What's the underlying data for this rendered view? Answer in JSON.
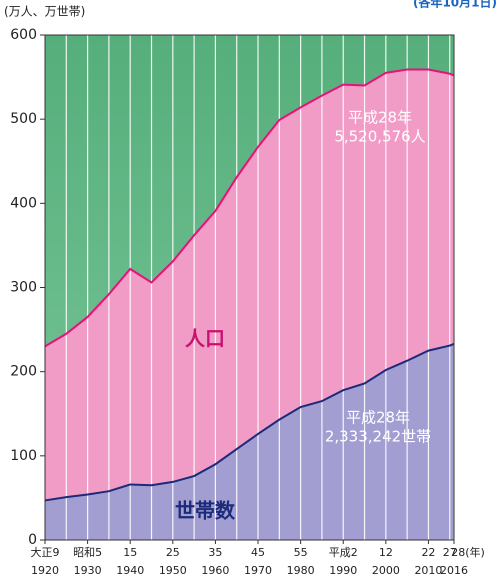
{
  "chart_data": {
    "type": "area",
    "y_axis_label": "(万人、万世帯)",
    "note": "(各年10月1日)",
    "x": [
      1920,
      1925,
      1930,
      1935,
      1940,
      1945,
      1950,
      1955,
      1960,
      1965,
      1970,
      1975,
      1980,
      1985,
      1990,
      1995,
      2000,
      2005,
      2010,
      2015,
      2016
    ],
    "series": [
      {
        "name": "人口",
        "color": "#f19cc6",
        "line_color": "#e4137c",
        "values": [
          230,
          245,
          265,
          292,
          322,
          306,
          331,
          362,
          391,
          431,
          467,
          499,
          514,
          528,
          541,
          540,
          555,
          559,
          559,
          554,
          552
        ]
      },
      {
        "name": "世帯数",
        "color": "#a29ed1",
        "line_color": "#1c2a7a",
        "values": [
          47,
          51,
          54,
          58,
          66,
          65,
          69,
          76,
          90,
          108,
          126,
          143,
          158,
          165,
          178,
          186,
          202,
          213,
          225,
          231,
          233
        ]
      }
    ],
    "background_color": "#5fb585",
    "xlim": [
      1920,
      2016
    ],
    "ylim": [
      0,
      600
    ],
    "yticks": [
      0,
      100,
      200,
      300,
      400,
      500,
      600
    ],
    "xticks": [
      1920,
      1930,
      1940,
      1950,
      1960,
      1970,
      1980,
      1990,
      2000,
      2010,
      2016
    ],
    "x_era_ticks": [
      {
        "value": 1920,
        "label": "大正9"
      },
      {
        "value": 1930,
        "label": "昭和5"
      },
      {
        "value": 1940,
        "label": "15"
      },
      {
        "value": 1950,
        "label": "25"
      },
      {
        "value": 1960,
        "label": "35"
      },
      {
        "value": 1970,
        "label": "45"
      },
      {
        "value": 1980,
        "label": "55"
      },
      {
        "value": 1990,
        "label": "平成2"
      },
      {
        "value": 2000,
        "label": "12"
      },
      {
        "value": 2010,
        "label": "22"
      },
      {
        "value": 2015,
        "label": "27"
      },
      {
        "value": 2016,
        "label": "28(年)"
      }
    ],
    "annotations": [
      {
        "lines": [
          "平成28年",
          "5,520,576人"
        ]
      },
      {
        "lines": [
          "平成28年",
          "2,333,242世帯"
        ]
      }
    ]
  }
}
